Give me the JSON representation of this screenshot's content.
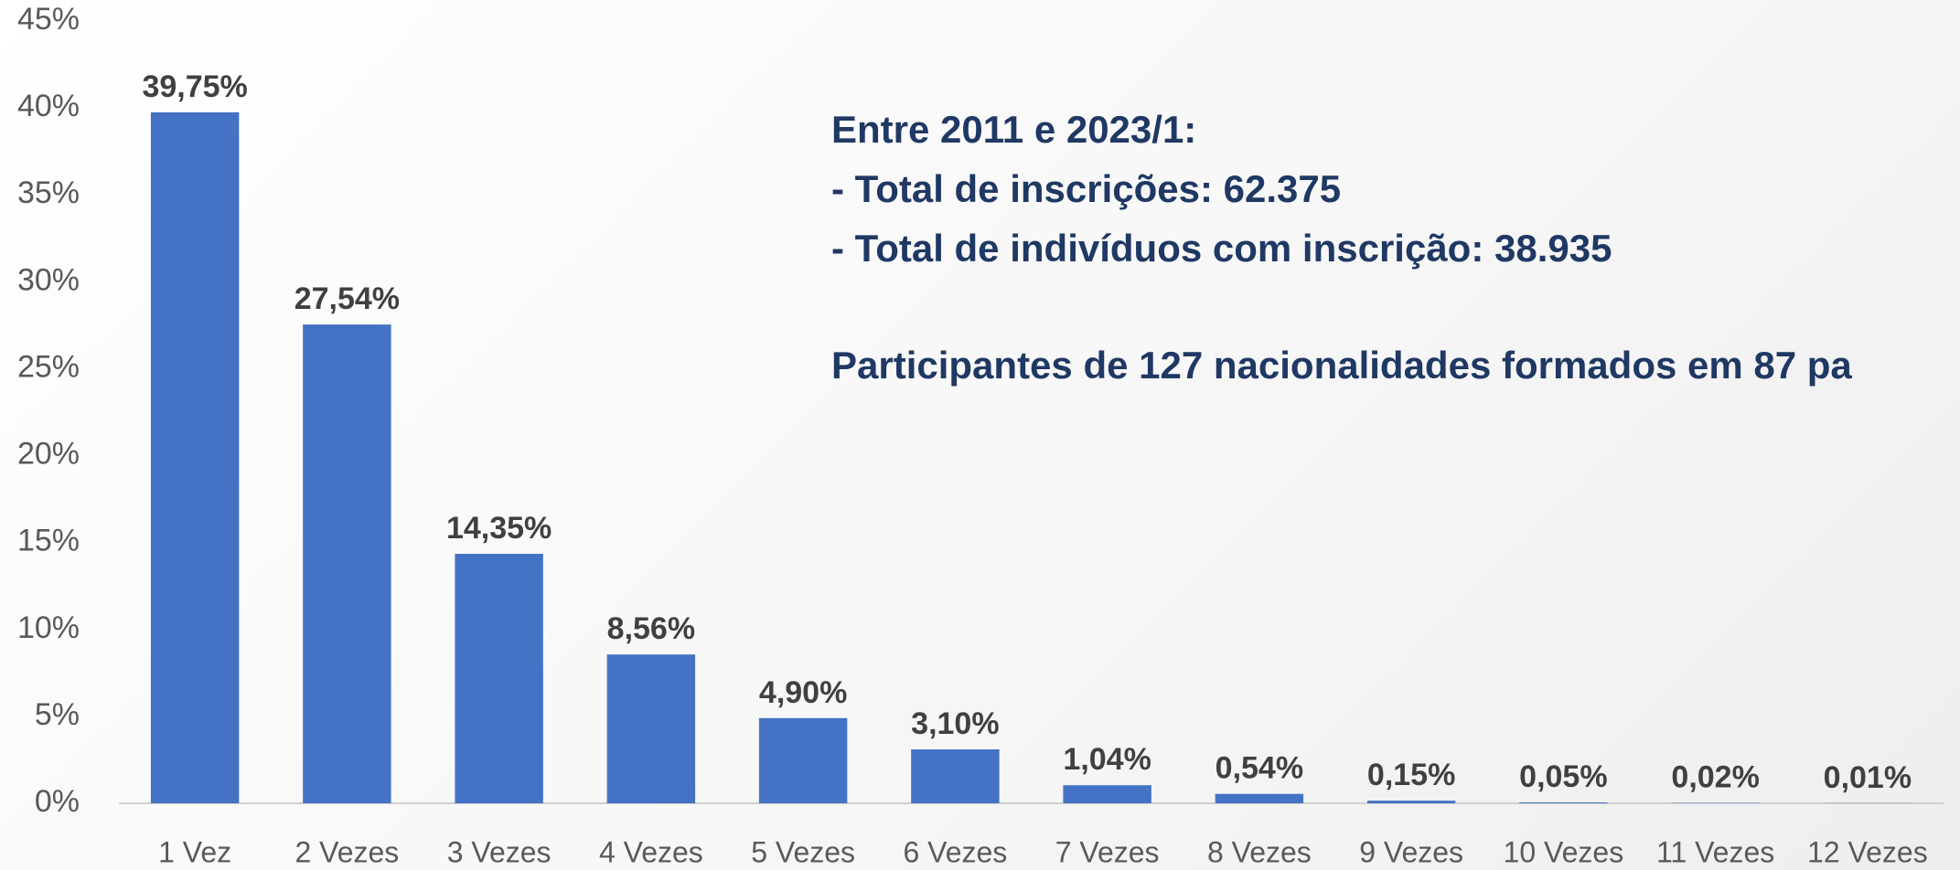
{
  "chart_data": {
    "type": "bar",
    "categories": [
      "1 Vez",
      "2 Vezes",
      "3 Vezes",
      "4 Vezes",
      "5 Vezes",
      "6 Vezes",
      "7 Vezes",
      "8 Vezes",
      "9 Vezes",
      "10 Vezes",
      "11 Vezes",
      "12 Vezes"
    ],
    "values": [
      39.75,
      27.54,
      14.35,
      8.56,
      4.9,
      3.1,
      1.04,
      0.54,
      0.15,
      0.05,
      0.02,
      0.01
    ],
    "value_labels": [
      "39,75%",
      "27,54%",
      "14,35%",
      "8,56%",
      "4,90%",
      "3,10%",
      "1,04%",
      "0,54%",
      "0,15%",
      "0,05%",
      "0,02%",
      "0,01%"
    ],
    "color": "#4472c4",
    "ylim": [
      0,
      45
    ],
    "yticks": [
      {
        "value": 0,
        "label": "0%"
      },
      {
        "value": 5,
        "label": "5%"
      },
      {
        "value": 10,
        "label": "10%"
      },
      {
        "value": 15,
        "label": "15%"
      },
      {
        "value": 20,
        "label": "20%"
      },
      {
        "value": 25,
        "label": "25%"
      },
      {
        "value": 30,
        "label": "30%"
      },
      {
        "value": 35,
        "label": "35%"
      },
      {
        "value": 40,
        "label": "40%"
      },
      {
        "value": 45,
        "label": "45%"
      }
    ],
    "grid": false,
    "annotations": [
      "Entre 2011 e 2023/1:",
      "- Total de inscrições: 62.375",
      "- Total de indivíduos com inscrição: 38.935",
      "Participantes de 127 nacionalidades formados em 87 pa"
    ]
  }
}
